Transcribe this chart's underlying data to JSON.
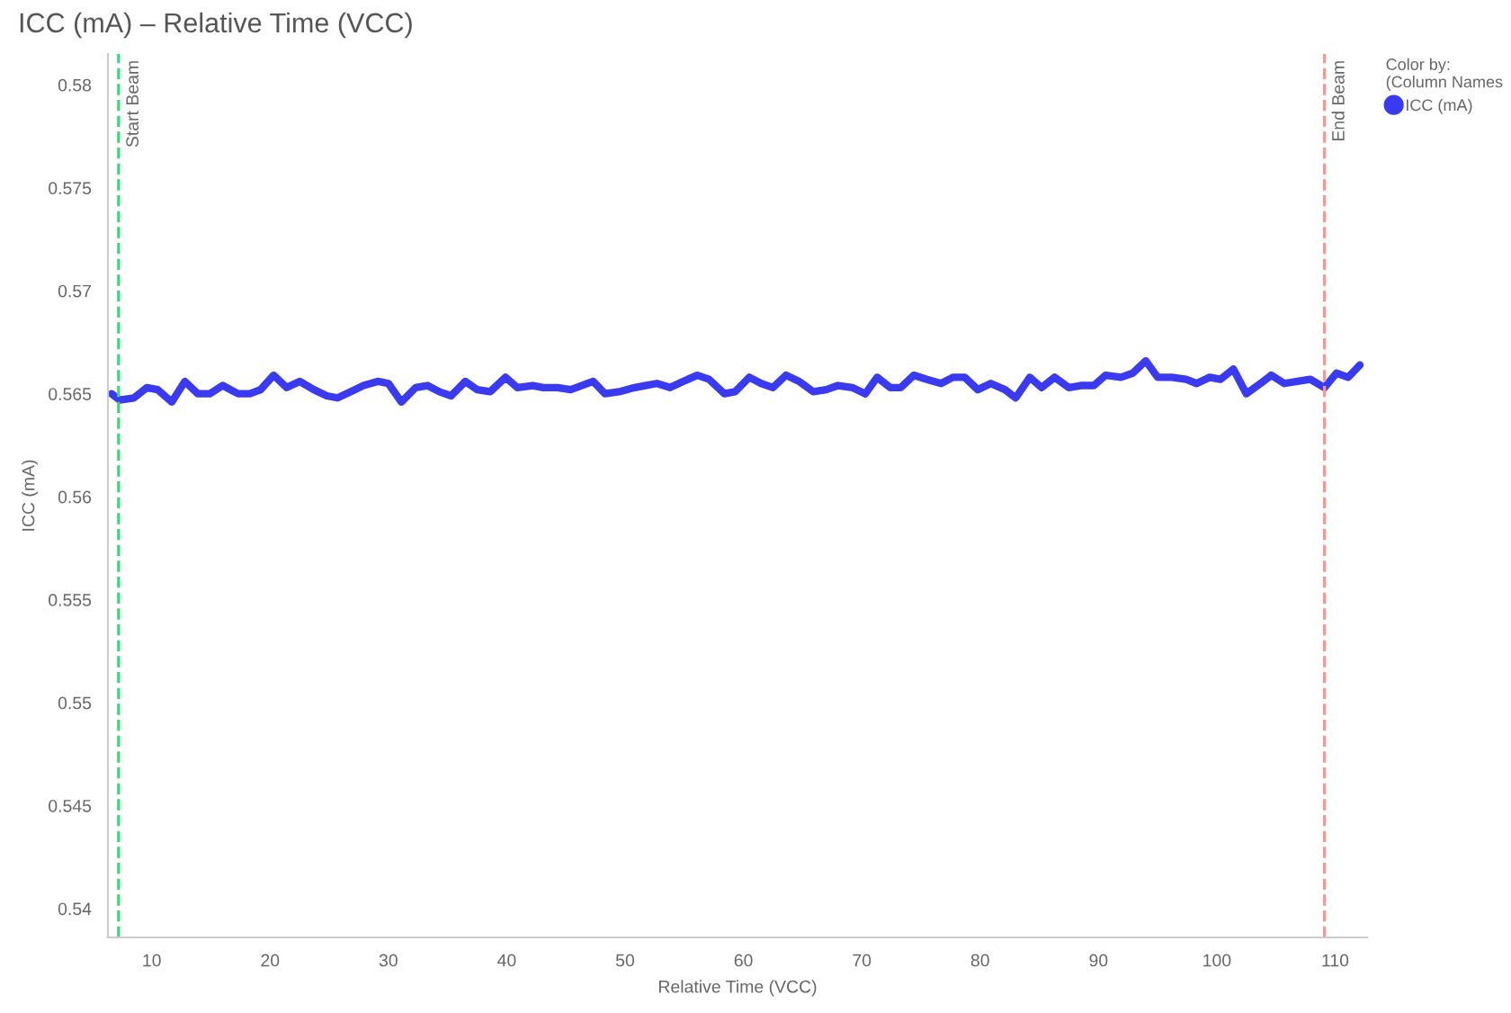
{
  "chart_data": {
    "type": "line",
    "title": "ICC (mA) – Relative Time (VCC)",
    "xlabel": "Relative Time (VCC)",
    "ylabel": "ICC (mA)",
    "legend_title": "Color by:\n(Column Names",
    "legend": "top right",
    "xlim": [
      6.3,
      112.7
    ],
    "ylim": [
      0.5386,
      0.5815
    ],
    "xticks": [
      10,
      20,
      30,
      40,
      50,
      60,
      70,
      80,
      90,
      100,
      110
    ],
    "yticks": [
      0.54,
      0.545,
      0.55,
      0.555,
      0.56,
      0.565,
      0.57,
      0.575,
      0.58
    ],
    "grid": false,
    "line_style": "solid",
    "ref_lines": [
      {
        "axis": "x",
        "value": 7.2,
        "label": "Start Beam",
        "color": "#3ed67f",
        "line_style": "dashed"
      },
      {
        "axis": "x",
        "value": 109.1,
        "label": "End Beam",
        "color": "#f29a8f",
        "line_style": "dashed"
      }
    ],
    "series": [
      {
        "name": "ICC (mA)",
        "color": "#3a3af0",
        "x": [
          6.6,
          7.3,
          8.5,
          9.6,
          10.5,
          11.7,
          12.8,
          13.9,
          14.9,
          16.0,
          17.3,
          18.3,
          19.2,
          20.3,
          21.4,
          22.5,
          23.7,
          24.8,
          25.7,
          26.8,
          27.9,
          29.1,
          30.0,
          31.1,
          32.3,
          33.3,
          34.3,
          35.3,
          36.5,
          37.5,
          38.6,
          39.9,
          40.9,
          42.2,
          43.1,
          44.3,
          45.4,
          47.3,
          48.3,
          49.5,
          50.8,
          51.7,
          52.7,
          53.8,
          54.9,
          56.1,
          57.1,
          58.4,
          59.3,
          60.5,
          61.5,
          62.5,
          63.6,
          64.7,
          65.9,
          67.0,
          68.0,
          69.2,
          70.3,
          71.3,
          72.4,
          73.3,
          74.4,
          75.5,
          76.7,
          77.7,
          78.7,
          79.8,
          80.9,
          82.1,
          83.0,
          84.2,
          85.2,
          86.3,
          87.5,
          88.5,
          89.6,
          90.6,
          91.9,
          92.9,
          94.0,
          95.0,
          96.2,
          97.4,
          98.3,
          99.4,
          100.3,
          101.4,
          102.5,
          103.7,
          104.6,
          105.7,
          106.8,
          107.9,
          109.1,
          110.1,
          111.1,
          112.1
        ],
        "values": [
          0.565,
          0.5647,
          0.5648,
          0.5653,
          0.5652,
          0.5646,
          0.5656,
          0.565,
          0.565,
          0.5654,
          0.565,
          0.565,
          0.5652,
          0.5659,
          0.5653,
          0.5656,
          0.5652,
          0.5649,
          0.5648,
          0.5651,
          0.5654,
          0.5656,
          0.5655,
          0.5646,
          0.5653,
          0.5654,
          0.5651,
          0.5649,
          0.5656,
          0.5652,
          0.5651,
          0.5658,
          0.5653,
          0.5654,
          0.5653,
          0.5653,
          0.5652,
          0.5656,
          0.565,
          0.5651,
          0.5653,
          0.5654,
          0.5655,
          0.5653,
          0.5656,
          0.5659,
          0.5657,
          0.565,
          0.5651,
          0.5658,
          0.5655,
          0.5653,
          0.5659,
          0.5656,
          0.5651,
          0.5652,
          0.5654,
          0.5653,
          0.565,
          0.5658,
          0.5653,
          0.5653,
          0.5659,
          0.5657,
          0.5655,
          0.5658,
          0.5658,
          0.5652,
          0.5655,
          0.5652,
          0.5648,
          0.5658,
          0.5653,
          0.5658,
          0.5653,
          0.5654,
          0.5654,
          0.5659,
          0.5658,
          0.566,
          0.5666,
          0.5658,
          0.5658,
          0.5657,
          0.5655,
          0.5658,
          0.5657,
          0.5662,
          0.565,
          0.5655,
          0.5659,
          0.5655,
          0.5656,
          0.5657,
          0.5653,
          0.566,
          0.5658,
          0.5664
        ]
      }
    ]
  }
}
